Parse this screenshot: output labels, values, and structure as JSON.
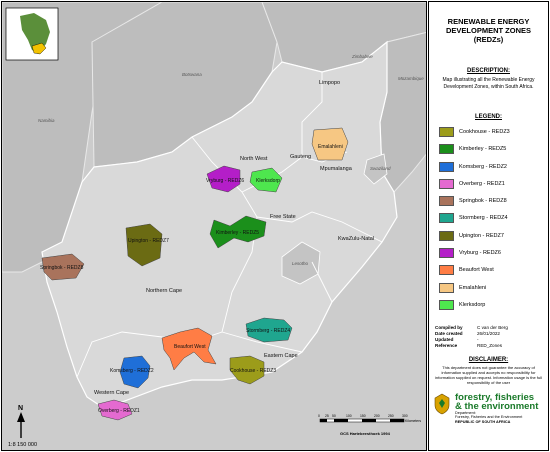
{
  "title": "RENEWABLE ENERGY DEVELOPMENT ZONES (REDZs)",
  "description": {
    "heading": "DESCRIPTION:",
    "text": "Map illustrating all the Renewable Energy Development Zones, within South Africa."
  },
  "legend": {
    "heading": "LEGEND:",
    "items": [
      {
        "label": "Cookhouse - REDZ3",
        "color": "#9c9c1a"
      },
      {
        "label": "Kimberley - REDZ5",
        "color": "#1b8f1b"
      },
      {
        "label": "Komsberg - REDZ2",
        "color": "#1f6fd8"
      },
      {
        "label": "Overberg - REDZ1",
        "color": "#e46ad0"
      },
      {
        "label": "Springbok - REDZ8",
        "color": "#a9735c"
      },
      {
        "label": "Stormberg - REDZ4",
        "color": "#1fa68f"
      },
      {
        "label": "Upington - REDZ7",
        "color": "#6b6b13"
      },
      {
        "label": "Vryburg - REDZ6",
        "color": "#b41ec8"
      },
      {
        "label": "Beaufort West",
        "color": "#ff7d45"
      },
      {
        "label": "Emalahleni",
        "color": "#f6c783"
      },
      {
        "label": "Klerksdorp",
        "color": "#4ee64e"
      }
    ]
  },
  "metadata": {
    "compiled_by_key": "Compiled by",
    "compiled_by": "C van der Berg",
    "date_created_key": "Date created",
    "date_created": "26/01/2022",
    "updated_key": "Updated",
    "updated": "-",
    "reference_key": "Reference",
    "reference": "RED_Zones"
  },
  "disclaimer": {
    "heading": "DISCLAIMER:",
    "text": "This department does not guarantee the accuracy of information supplied and accepts no responsibility for information supplied on request. Information usage is the full responsibility of the user"
  },
  "department": {
    "name_line1": "forestry, fisheries",
    "name_line2": "& the environment",
    "sub1": "Department:",
    "sub2": "Forestry, Fisheries and the Environment",
    "sub3": "REPUBLIC OF SOUTH AFRICA"
  },
  "map": {
    "countries": {
      "botswana": "Botswana",
      "namibia": "Namibia",
      "mozambique": "Mozambique",
      "zimbabwe": "Zimbabwe",
      "swaziland": "Swaziland",
      "lesotho": "Lesotho"
    },
    "provinces": {
      "limpopo": "Limpopo",
      "north_west": "North West",
      "gauteng": "Gauteng",
      "mpumalanga": "Mpumalanga",
      "free_state": "Free State",
      "kwazulu_natal": "KwaZulu-Natal",
      "northern_cape": "Northern Cape",
      "eastern_cape": "Eastern Cape",
      "western_cape": "Western Cape"
    },
    "zones": {
      "vryburg": "Vryburg - REDZ6",
      "klerksdorp": "Klerksdorp",
      "emalahleni": "Emalahleni",
      "kimberley": "Kimberley - REDZ5",
      "upington": "Upington - REDZ7",
      "springbok": "Springbok - REDZ8",
      "beaufort": "Beaufort West",
      "stormberg": "Stormberg - REDZ4",
      "komsberg": "Komsberg - REDZ2",
      "cookhouse": "Cookhouse - REDZ3",
      "overberg": "Overberg - REDZ1"
    },
    "north_arrow": "N",
    "scale_text": "1:8 150 000",
    "scalebar": {
      "ticks": [
        "0",
        "25",
        "50",
        "100",
        "150",
        "200",
        "250",
        "300"
      ],
      "unit": "Kilometers",
      "crs": "GCS Hartebeesthoek 1994"
    }
  }
}
